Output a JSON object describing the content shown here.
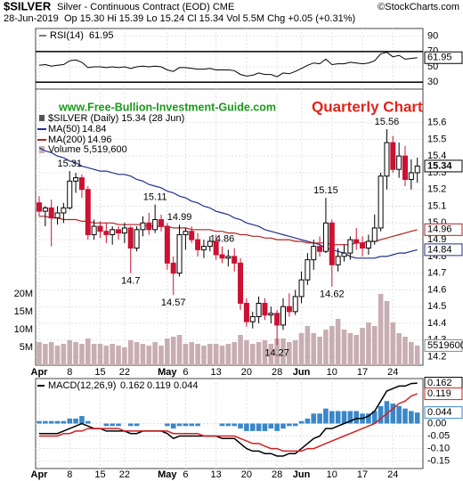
{
  "header": {
    "symbol": "$SILVER",
    "name": "Silver - Continuous Contract (EOD) CME",
    "copyright": "©StockCharts.com",
    "date": "28-Jun-2019",
    "quote": "Op 15.30 Hi 15.39 Lo 15.24 Cl 15.34 Vol 5.5M Chg +0.05 (+0.31%)"
  },
  "chart_data": [
    {
      "type": "line",
      "series": [
        {
          "name": "RSI(14)",
          "color": "#000000",
          "values": [
            52,
            53,
            51,
            52,
            53,
            58,
            59,
            56,
            49,
            50,
            50,
            49,
            50,
            49,
            50,
            48,
            50,
            51,
            50,
            51,
            50,
            46,
            44,
            49,
            49,
            48,
            47,
            47,
            48,
            46,
            46,
            46,
            45,
            40,
            38,
            39,
            42,
            40,
            40,
            37,
            42,
            41,
            44,
            48,
            52,
            55,
            54,
            60,
            53,
            54,
            54,
            56,
            55,
            54,
            55,
            58,
            67,
            69,
            63,
            65,
            60,
            61,
            61.95
          ]
        }
      ],
      "ylim": [
        21,
        100
      ],
      "yticks": [
        30,
        50,
        70,
        90
      ],
      "reference_lines": [
        30,
        70
      ],
      "grid": true
    },
    {
      "type": "candlestick",
      "title": "$SILVER (Daily) 15.34 (28 Jun)",
      "watermarks": [
        "www.Free-Bullion-Investment-Guide.com",
        "Quarterly Chart"
      ],
      "categories": [
        "Apr",
        null,
        null,
        null,
        null,
        "8",
        null,
        null,
        null,
        null,
        "15",
        null,
        null,
        null,
        "22",
        null,
        null,
        null,
        null,
        null,
        null,
        "May",
        null,
        null,
        "6",
        null,
        null,
        null,
        null,
        "13",
        null,
        null,
        null,
        null,
        "20",
        null,
        null,
        null,
        null,
        "28",
        null,
        null,
        null,
        "Jun",
        null,
        null,
        null,
        null,
        "10",
        null,
        null,
        null,
        null,
        "17",
        null,
        null,
        null,
        null,
        "24",
        null,
        null,
        null,
        null
      ],
      "open": [
        15.12,
        15.07,
        15.09,
        15.03,
        15.06,
        15.09,
        15.25,
        15.27,
        15.2,
        14.93,
        14.98,
        14.95,
        14.93,
        14.96,
        14.94,
        14.97,
        14.85,
        14.96,
        15.0,
        14.96,
        15.02,
        14.98,
        14.76,
        14.7,
        14.93,
        14.95,
        14.9,
        14.84,
        14.86,
        14.89,
        14.81,
        14.79,
        14.8,
        14.76,
        14.52,
        14.41,
        14.44,
        14.52,
        14.45,
        14.46,
        14.39,
        14.5,
        14.47,
        14.56,
        14.66,
        14.78,
        14.86,
        14.83,
        15.0,
        14.75,
        14.8,
        14.82,
        14.9,
        14.88,
        14.85,
        14.89,
        14.97,
        15.28,
        15.48,
        15.32,
        15.4,
        15.26,
        15.3
      ],
      "high": [
        15.16,
        15.1,
        15.14,
        15.1,
        15.12,
        15.31,
        15.3,
        15.29,
        15.22,
        15.02,
        15.01,
        15.0,
        14.98,
        14.98,
        15.0,
        14.98,
        14.98,
        15.04,
        15.06,
        15.11,
        15.05,
        15.0,
        14.8,
        14.99,
        14.97,
        14.98,
        14.94,
        14.9,
        14.92,
        14.93,
        14.86,
        14.84,
        14.85,
        14.79,
        14.55,
        14.47,
        14.56,
        14.55,
        14.5,
        14.48,
        14.55,
        14.58,
        14.6,
        14.71,
        14.82,
        14.9,
        14.92,
        15.15,
        15.02,
        14.85,
        14.87,
        14.92,
        14.97,
        14.92,
        14.93,
        15.05,
        15.3,
        15.56,
        15.52,
        15.48,
        15.46,
        15.38,
        15.39
      ],
      "low": [
        15.04,
        14.98,
        14.86,
        14.99,
        15.0,
        15.08,
        15.18,
        15.15,
        14.9,
        14.9,
        14.91,
        14.88,
        14.87,
        14.9,
        14.88,
        14.7,
        14.83,
        14.92,
        14.93,
        14.94,
        14.95,
        14.72,
        14.57,
        14.68,
        14.84,
        14.88,
        14.8,
        14.79,
        14.83,
        14.78,
        14.76,
        14.74,
        14.71,
        14.48,
        14.38,
        14.37,
        14.4,
        14.42,
        14.4,
        14.27,
        14.36,
        14.44,
        14.45,
        14.52,
        14.63,
        14.72,
        14.8,
        14.82,
        14.62,
        14.71,
        14.77,
        14.78,
        14.84,
        14.8,
        14.81,
        14.87,
        14.95,
        15.2,
        15.3,
        15.27,
        15.22,
        15.2,
        15.24
      ],
      "close": [
        15.07,
        15.09,
        15.03,
        15.06,
        15.09,
        15.25,
        15.27,
        15.2,
        14.93,
        14.98,
        14.95,
        14.93,
        14.96,
        14.94,
        14.97,
        14.85,
        14.96,
        15.0,
        14.96,
        15.02,
        14.98,
        14.76,
        14.7,
        14.93,
        14.95,
        14.9,
        14.84,
        14.86,
        14.89,
        14.81,
        14.79,
        14.8,
        14.76,
        14.52,
        14.41,
        14.44,
        14.52,
        14.45,
        14.46,
        14.39,
        14.5,
        14.47,
        14.56,
        14.66,
        14.78,
        14.86,
        14.83,
        15.0,
        14.75,
        14.8,
        14.82,
        14.9,
        14.88,
        14.85,
        14.89,
        14.97,
        15.28,
        15.48,
        15.32,
        15.4,
        15.26,
        15.3,
        15.34
      ],
      "up_color": "#000000",
      "down_color": "#cc1133",
      "series": [
        {
          "name": "MA(50)",
          "color": "#1f2f8f",
          "values": [
            15.45,
            15.43,
            15.42,
            15.4,
            15.39,
            15.37,
            15.36,
            15.34,
            15.33,
            15.32,
            15.31,
            15.31,
            15.3,
            15.29,
            15.29,
            15.28,
            15.26,
            15.25,
            15.23,
            15.22,
            15.21,
            15.19,
            15.18,
            15.16,
            15.15,
            15.13,
            15.12,
            15.1,
            15.09,
            15.07,
            15.06,
            15.05,
            15.03,
            15.02,
            15.0,
            14.99,
            14.98,
            14.96,
            14.95,
            14.94,
            14.93,
            14.92,
            14.91,
            14.9,
            14.89,
            14.88,
            14.87,
            14.85,
            14.84,
            14.83,
            14.82,
            14.8,
            14.79,
            14.79,
            14.79,
            14.79,
            14.8,
            14.8,
            14.81,
            14.82,
            14.82,
            14.83,
            14.84
          ]
        },
        {
          "name": "MA(200)",
          "color": "#b22222",
          "values": [
            15.04,
            15.04,
            15.03,
            15.03,
            15.02,
            15.02,
            15.02,
            15.01,
            15.01,
            15.0,
            15.0,
            15.0,
            15.0,
            14.99,
            14.99,
            14.99,
            14.99,
            14.99,
            14.98,
            14.98,
            14.98,
            14.98,
            14.97,
            14.97,
            14.97,
            14.96,
            14.96,
            14.96,
            14.96,
            14.95,
            14.95,
            14.94,
            14.94,
            14.93,
            14.93,
            14.92,
            14.92,
            14.91,
            14.91,
            14.9,
            14.9,
            14.9,
            14.89,
            14.89,
            14.88,
            14.88,
            14.88,
            14.88,
            14.87,
            14.87,
            14.87,
            14.87,
            14.88,
            14.88,
            14.89,
            14.89,
            14.9,
            14.91,
            14.92,
            14.93,
            14.94,
            14.95,
            14.96
          ]
        }
      ],
      "volume": {
        "name": "Volume 5,519,600",
        "color": "#c8aeb2",
        "values": [
          6500000,
          6000000,
          6500000,
          5500000,
          6000000,
          7000000,
          6500000,
          6000000,
          7500000,
          6000000,
          6000000,
          5500000,
          6000000,
          5500000,
          5000000,
          7000000,
          6500000,
          6000000,
          5500000,
          6500000,
          5500000,
          7500000,
          8000000,
          8500000,
          6000000,
          6500000,
          6000000,
          5500000,
          6000000,
          6000000,
          5500000,
          6000000,
          6500000,
          8500000,
          7000000,
          6000000,
          6500000,
          7000000,
          6000000,
          7500000,
          7500000,
          6500000,
          7000000,
          9000000,
          11000000,
          9000000,
          8000000,
          10000000,
          11000000,
          13000000,
          10000000,
          9000000,
          8500000,
          10500000,
          12000000,
          11000000,
          20000000,
          18000000,
          12000000,
          9000000,
          8000000,
          6500000,
          5519600
        ],
        "ylim": [
          0,
          77500000
        ],
        "yticks": [
          {
            "value": 5000000,
            "label": "5M"
          },
          {
            "value": 10000000,
            "label": "10M"
          },
          {
            "value": 15000000,
            "label": "15M"
          },
          {
            "value": 20000000,
            "label": "20M"
          }
        ]
      },
      "annotations": [
        15.31,
        14.86,
        14.7,
        15.11,
        14.99,
        14.57,
        14.27,
        15.15,
        14.62,
        15.56
      ],
      "ylim": [
        14.15,
        15.8
      ],
      "yticks": [
        14.2,
        14.3,
        14.4,
        14.5,
        14.6,
        14.7,
        14.8,
        14.9,
        {
          "value": 15,
          "label": "15.0"
        },
        15.1,
        15.2,
        15.3,
        15.4,
        15.5,
        15.6
      ],
      "grid": true
    },
    {
      "type": "macd",
      "series": [
        {
          "name": "MACD(12,26,9)",
          "color": "#000000",
          "values": [
            -0.04,
            -0.04,
            -0.04,
            -0.04,
            -0.03,
            -0.02,
            -0.01,
            0.0,
            -0.01,
            -0.02,
            -0.02,
            -0.03,
            -0.03,
            -0.03,
            -0.03,
            -0.04,
            -0.04,
            -0.03,
            -0.03,
            -0.03,
            -0.03,
            -0.04,
            -0.06,
            -0.05,
            -0.05,
            -0.05,
            -0.05,
            -0.05,
            -0.05,
            -0.05,
            -0.06,
            -0.06,
            -0.06,
            -0.08,
            -0.1,
            -0.11,
            -0.11,
            -0.12,
            -0.12,
            -0.13,
            -0.13,
            -0.12,
            -0.12,
            -0.1,
            -0.08,
            -0.06,
            -0.05,
            -0.02,
            -0.02,
            -0.01,
            0.0,
            0.01,
            0.02,
            0.02,
            0.03,
            0.05,
            0.09,
            0.13,
            0.14,
            0.15,
            0.15,
            0.16,
            0.162
          ]
        },
        {
          "color": "#d11f1f",
          "values": [
            -0.05,
            -0.05,
            -0.05,
            -0.05,
            -0.04,
            -0.04,
            -0.03,
            -0.03,
            -0.02,
            -0.02,
            -0.02,
            -0.02,
            -0.02,
            -0.02,
            -0.03,
            -0.03,
            -0.03,
            -0.03,
            -0.03,
            -0.03,
            -0.03,
            -0.03,
            -0.04,
            -0.04,
            -0.04,
            -0.04,
            -0.04,
            -0.05,
            -0.05,
            -0.05,
            -0.05,
            -0.05,
            -0.05,
            -0.06,
            -0.07,
            -0.08,
            -0.08,
            -0.09,
            -0.1,
            -0.1,
            -0.11,
            -0.11,
            -0.11,
            -0.11,
            -0.1,
            -0.1,
            -0.09,
            -0.08,
            -0.07,
            -0.06,
            -0.05,
            -0.04,
            -0.03,
            -0.02,
            -0.01,
            0.0,
            0.02,
            0.04,
            0.06,
            0.08,
            0.09,
            0.11,
            0.119
          ]
        },
        {
          "kind": "bar",
          "color": "#3a87c8",
          "values": [
            0.01,
            0.01,
            0.01,
            0.01,
            0.01,
            0.02,
            0.02,
            0.03,
            0.01,
            0,
            0,
            -0.01,
            -0.01,
            -0.01,
            0,
            -0.01,
            -0.01,
            0,
            0,
            0,
            0,
            -0.01,
            -0.02,
            -0.01,
            -0.01,
            -0.01,
            -0.01,
            0,
            0,
            0,
            -0.01,
            -0.01,
            -0.01,
            -0.02,
            -0.03,
            -0.03,
            -0.03,
            -0.03,
            -0.02,
            -0.03,
            -0.02,
            -0.01,
            -0.01,
            0.01,
            0.02,
            0.04,
            0.04,
            0.06,
            0.05,
            0.05,
            0.05,
            0.05,
            0.05,
            0.04,
            0.04,
            0.05,
            0.07,
            0.09,
            0.08,
            0.07,
            0.06,
            0.05,
            0.044
          ]
        }
      ],
      "ylim": [
        -0.18,
        0.18
      ],
      "yticks": [
        {
          "value": 0,
          "label": "0.00"
        },
        -0.05,
        {
          "value": -0.1,
          "label": "-0.10"
        },
        -0.15
      ],
      "grid": true
    }
  ]
}
